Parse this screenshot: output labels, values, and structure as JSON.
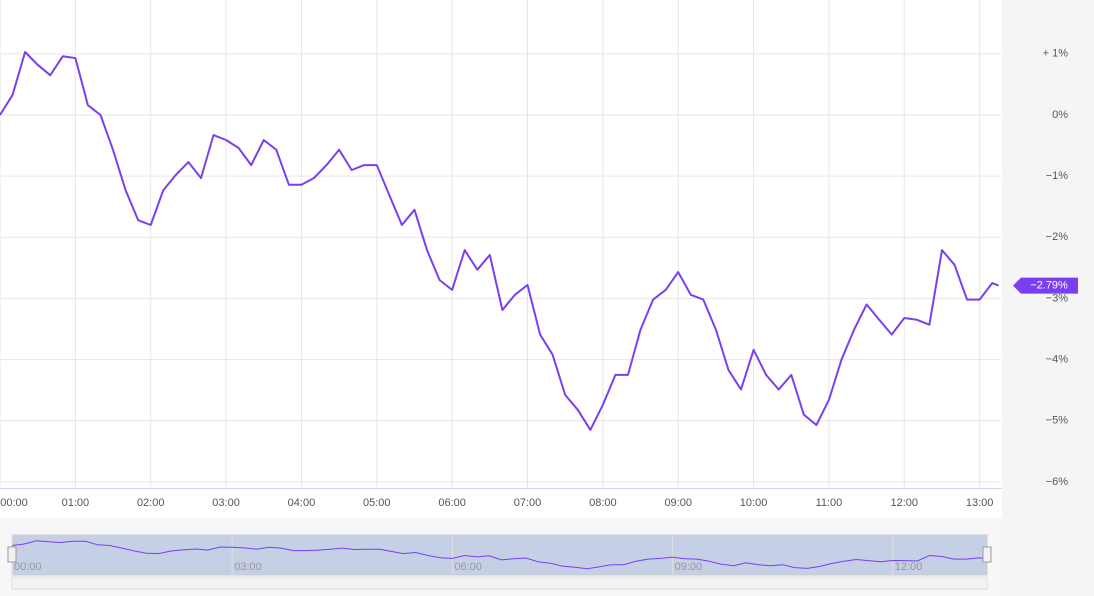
{
  "chart_data": {
    "type": "line",
    "x": [
      "00:00",
      "00:10",
      "00:20",
      "00:30",
      "00:40",
      "00:50",
      "01:00",
      "01:10",
      "01:20",
      "01:30",
      "01:40",
      "01:50",
      "02:00",
      "02:10",
      "02:20",
      "02:30",
      "02:40",
      "02:50",
      "03:00",
      "03:10",
      "03:20",
      "03:30",
      "03:40",
      "03:50",
      "04:00",
      "04:10",
      "04:20",
      "04:30",
      "04:40",
      "04:50",
      "05:00",
      "05:10",
      "05:20",
      "05:30",
      "05:40",
      "05:50",
      "06:00",
      "06:10",
      "06:20",
      "06:30",
      "06:40",
      "06:50",
      "07:00",
      "07:10",
      "07:20",
      "07:30",
      "07:40",
      "07:50",
      "08:00",
      "08:10",
      "08:20",
      "08:30",
      "08:40",
      "08:50",
      "09:00",
      "09:10",
      "09:20",
      "09:30",
      "09:40",
      "09:50",
      "10:00",
      "10:10",
      "10:20",
      "10:30",
      "10:40",
      "10:50",
      "11:00",
      "11:10",
      "11:20",
      "11:30",
      "11:40",
      "11:50",
      "12:00",
      "12:10",
      "12:20",
      "12:30",
      "12:40",
      "12:50",
      "13:00",
      "13:10",
      "13:15"
    ],
    "series": [
      {
        "color": "#7b3ff2",
        "values": [
          0,
          0.33,
          1.03,
          0.82,
          0.65,
          0.96,
          0.93,
          0.16,
          0,
          -0.57,
          -1.23,
          -1.72,
          -1.8,
          -1.23,
          -0.98,
          -0.77,
          -1.03,
          -0.33,
          -0.41,
          -0.54,
          -0.82,
          -0.41,
          -0.57,
          -1.14,
          -1.14,
          -1.03,
          -0.82,
          -0.57,
          -0.9,
          -0.82,
          -0.82,
          -1.31,
          -1.8,
          -1.55,
          -2.21,
          -2.7,
          -2.86,
          -2.21,
          -2.53,
          -2.29,
          -3.19,
          -2.94,
          -2.78,
          -3.59,
          -3.92,
          -4.58,
          -4.82,
          -5.15,
          -4.74,
          -4.25,
          -4.25,
          -3.51,
          -3.02,
          -2.86,
          -2.57,
          -2.94,
          -3.02,
          -3.51,
          -4.17,
          -4.49,
          -3.84,
          -4.25,
          -4.49,
          -4.25,
          -4.9,
          -5.07,
          -4.66,
          -4,
          -3.51,
          -3.1,
          -3.35,
          -3.59,
          -3.32,
          -3.35,
          -3.43,
          -2.21,
          -2.45,
          -3.02,
          -3.02,
          -2.75,
          -2.79
        ]
      }
    ],
    "current_value": {
      "value": -2.79,
      "label": "−2.79%"
    },
    "xlim": [
      "00:00",
      "13:17"
    ],
    "xticks": [
      "00:00",
      "01:00",
      "02:00",
      "03:00",
      "04:00",
      "05:00",
      "06:00",
      "07:00",
      "08:00",
      "09:00",
      "10:00",
      "11:00",
      "12:00",
      "13:00"
    ],
    "ylim": [
      -6.1,
      1.88
    ],
    "yticks": [
      {
        "value": 1,
        "label": "+ 1%"
      },
      {
        "value": 0,
        "label": "0%"
      },
      {
        "value": -1,
        "label": "−1%"
      },
      {
        "value": -2,
        "label": "−2%"
      },
      {
        "value": -3,
        "label": "−3%"
      },
      {
        "value": -4,
        "label": "−4%"
      },
      {
        "value": -5,
        "label": "−5%"
      },
      {
        "value": -6,
        "label": "−6%"
      }
    ],
    "navigator_ticks": [
      "00:00",
      "03:00",
      "06:00",
      "09:00",
      "12:00"
    ],
    "grid": true
  }
}
